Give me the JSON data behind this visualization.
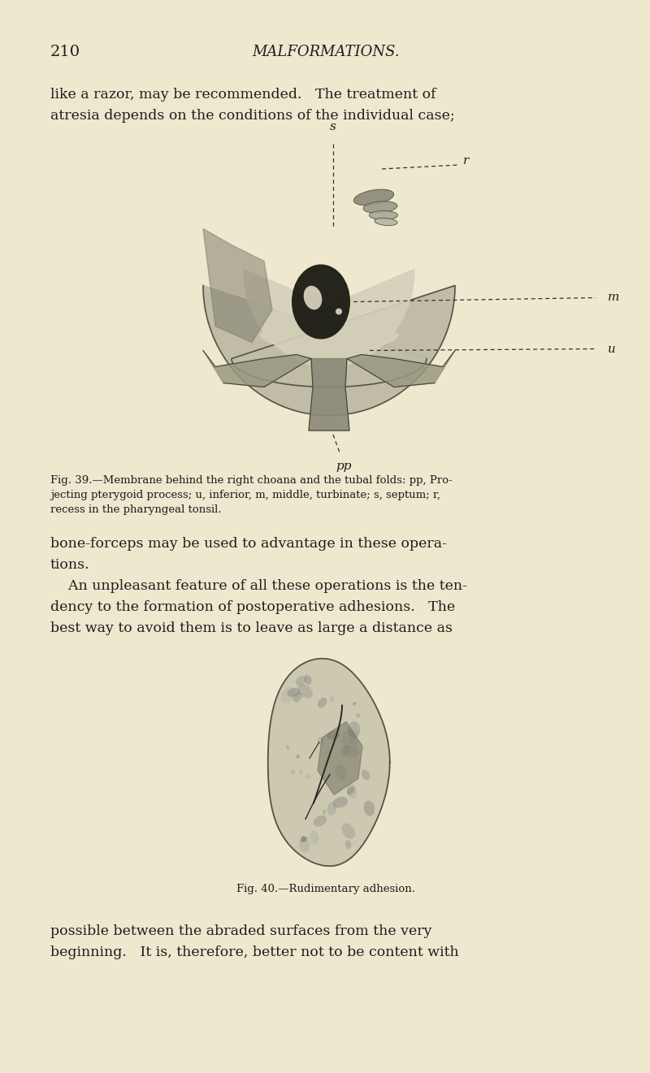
{
  "bg_color": "#ede8ce",
  "page_number": "210",
  "header_title": "MALFORMATIONS.",
  "text_color": "#1e1e1e",
  "top_text_lines": [
    "like a razor, may be recommended.   The treatment of",
    "atresia depends on the conditions of the individual case;"
  ],
  "fig39_caption_lines": [
    "Fig. 39.—Membrane behind the right choana and the tubal folds: pp, Pro-",
    "jecting pterygoid process; u, inferior, m, middle, turbinate; s, septum; r,",
    "recess in the pharyngeal tonsil."
  ],
  "middle_text_lines": [
    "bone-forceps may be used to advantage in these opera-",
    "tions.",
    "    An unpleasant feature of all these operations is the ten-",
    "dency to the formation of postoperative adhesions.   The",
    "best way to avoid them is to leave as large a distance as"
  ],
  "fig40_caption": "Fig. 40.—Rudimentary adhesion.",
  "bottom_text_lines": [
    "possible between the abraded surfaces from the very",
    "beginning.   It is, therefore, better not to be content with"
  ]
}
